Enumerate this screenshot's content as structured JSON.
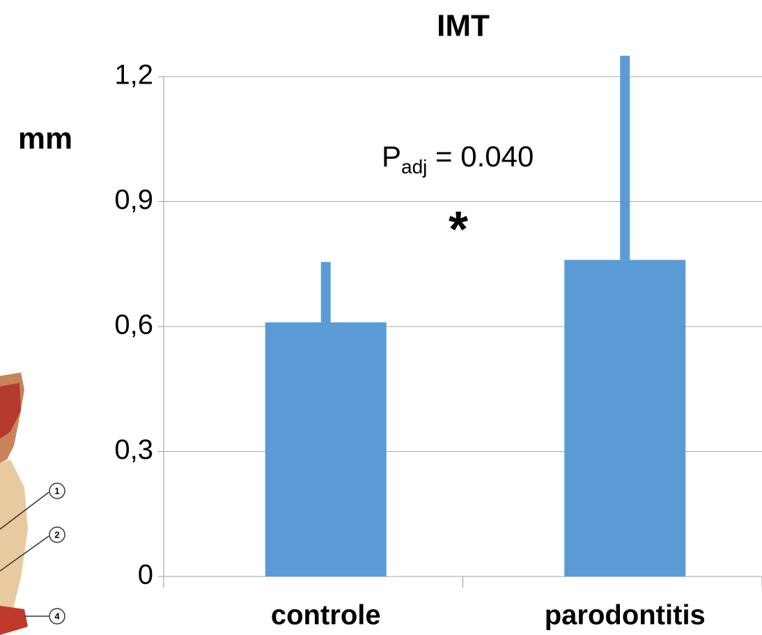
{
  "chart_data": {
    "type": "bar",
    "title": "IMT",
    "y_label": "mm",
    "categories": [
      "controle",
      "parodontitis"
    ],
    "values": [
      0.61,
      0.76
    ],
    "errors": [
      0.145,
      0.49
    ],
    "color": "#5b9bd5",
    "ylim": [
      0,
      1.2
    ],
    "yticks": [
      0,
      {
        "value": 0.3,
        "label": "0,3"
      },
      {
        "value": 0.6,
        "label": "0,6"
      },
      {
        "value": 0.9,
        "label": "0,9"
      },
      {
        "value": 1.2,
        "label": "1,2"
      }
    ],
    "grid": true,
    "annotation": {
      "text": "P",
      "subscript": "adj",
      "rest": " = 0.040",
      "marker": "*"
    },
    "inset_labels": [
      "1",
      "2",
      "4"
    ]
  }
}
